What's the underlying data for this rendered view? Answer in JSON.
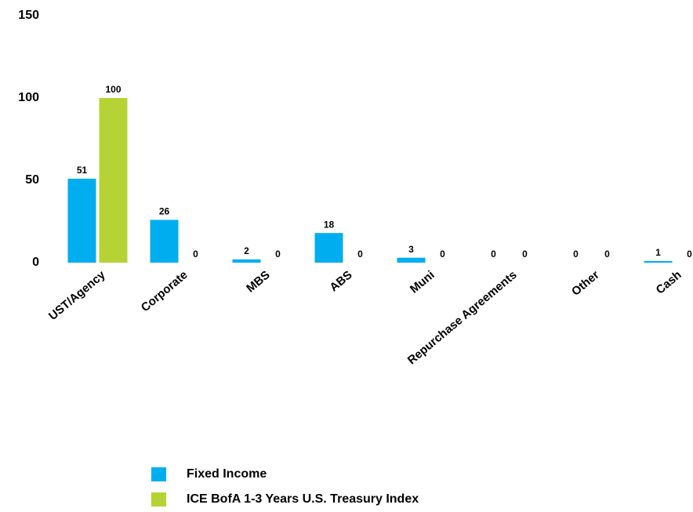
{
  "chart_data": {
    "type": "bar",
    "categories": [
      "UST/Agency",
      "Corporate",
      "MBS",
      "ABS",
      "Muni",
      "Repurchase Agreements",
      "Other",
      "Cash"
    ],
    "series": [
      {
        "name": "Fixed Income",
        "color": "#00aeef",
        "values": [
          51,
          26,
          2,
          18,
          3,
          0,
          0,
          1
        ]
      },
      {
        "name": "ICE BofA 1-3 Years U.S. Treasury Index",
        "color": "#b5d334",
        "values": [
          100,
          0,
          0,
          0,
          0,
          0,
          0,
          0
        ]
      }
    ],
    "ylim": [
      0,
      150
    ],
    "yticks": [
      0,
      50,
      100,
      150
    ],
    "grid": false
  }
}
